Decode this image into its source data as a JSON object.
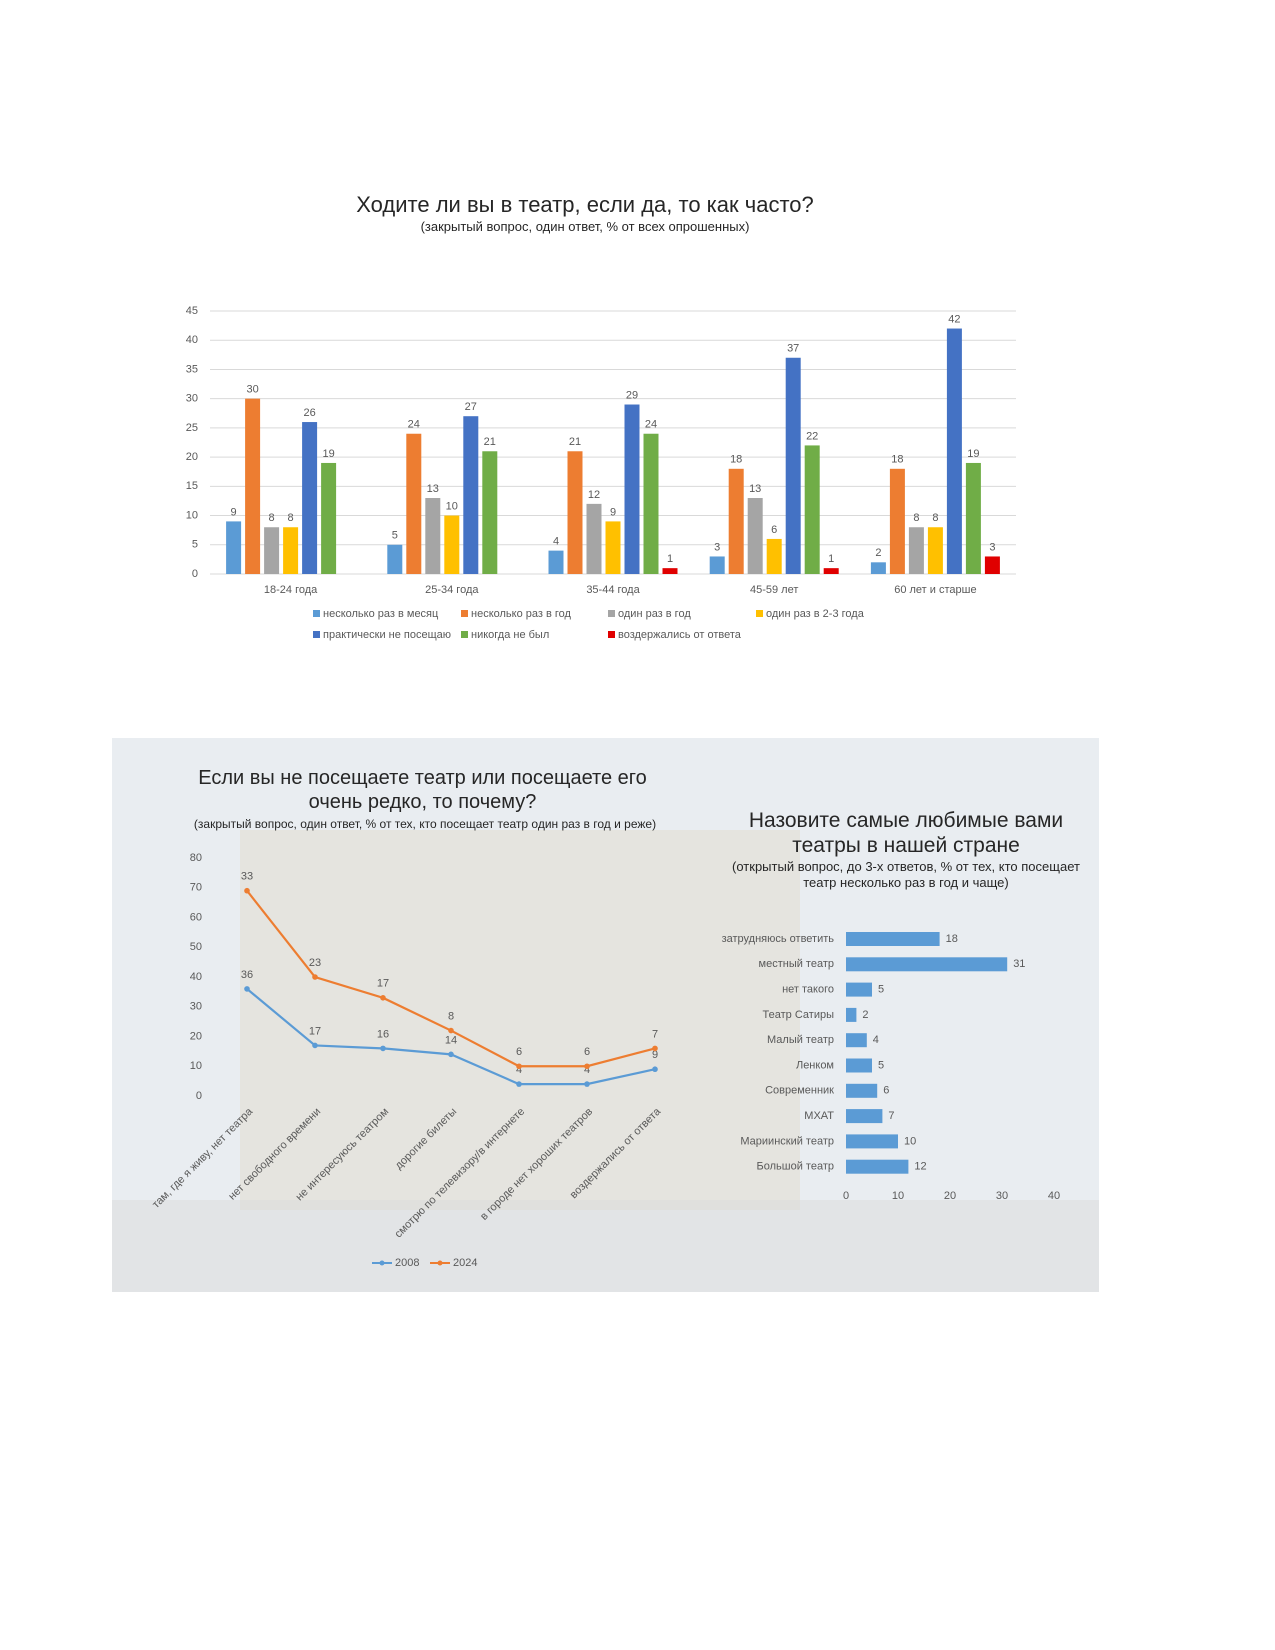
{
  "chart_data": [
    {
      "type": "bar",
      "title": "Ходите ли вы в театр, если да, то как часто?",
      "subtitle": "(закрытый вопрос, один ответ, % от всех опрошенных)",
      "categories": [
        "18-24 года",
        "25-34 года",
        "35-44 года",
        "45-59 лет",
        "60 лет и старше"
      ],
      "series": [
        {
          "name": "несколько раз в месяц",
          "color": "#5b9bd5",
          "values": [
            9,
            5,
            4,
            3,
            2
          ]
        },
        {
          "name": "несколько раз в год",
          "color": "#ed7d31",
          "values": [
            30,
            24,
            21,
            18,
            18
          ]
        },
        {
          "name": "один раз в год",
          "color": "#a5a5a5",
          "values": [
            8,
            13,
            12,
            13,
            8
          ]
        },
        {
          "name": "один раз в 2-3 года",
          "color": "#ffc000",
          "values": [
            8,
            10,
            9,
            6,
            8
          ]
        },
        {
          "name": "практически не посещаю",
          "color": "#4472c4",
          "values": [
            26,
            27,
            29,
            37,
            42
          ]
        },
        {
          "name": "никогда не был",
          "color": "#70ad47",
          "values": [
            19,
            21,
            24,
            22,
            19
          ]
        },
        {
          "name": "воздержались от ответа",
          "color": "#e00000",
          "values": [
            null,
            null,
            1,
            1,
            3
          ]
        }
      ],
      "ylim": [
        0,
        45
      ],
      "yticks": [
        0,
        5,
        10,
        15,
        20,
        25,
        30,
        35,
        40,
        45
      ],
      "grid": true,
      "legend": "bottom"
    },
    {
      "type": "line",
      "title": "Если вы не посещаете театр или посещаете его очень редко, то почему?",
      "subtitle": "(закрытый вопрос, один ответ, % от тех, кто посещает театр один раз в год и реже)",
      "categories": [
        "там, где я живу, нет театра",
        "нет свободного времени",
        "не интересуюсь театром",
        "дорогие билеты",
        "смотрю по телевизору/в интернете",
        "в городе нет хороших театров",
        "воздержались от ответа"
      ],
      "series": [
        {
          "name": "2008",
          "color": "#5b9bd5",
          "values": [
            36,
            17,
            16,
            14,
            4,
            4,
            9
          ]
        },
        {
          "name": "2024",
          "color": "#ed7d31",
          "values": [
            33,
            23,
            17,
            8,
            6,
            6,
            7
          ]
        }
      ],
      "stacked": true,
      "ylim": [
        0,
        80
      ],
      "yticks": [
        0,
        10,
        20,
        30,
        40,
        50,
        60,
        70,
        80
      ],
      "grid": false,
      "legend": "bottom"
    },
    {
      "type": "bar",
      "orientation": "horizontal",
      "title": "Назовите самые любимые вами театры в нашей стране",
      "subtitle": "(открытый вопрос, до 3-х ответов, % от тех, кто посещает театр несколько раз в год и чаще)",
      "categories": [
        "затрудняюсь ответить",
        "местный театр",
        "нет такого",
        "Театр Сатиры",
        "Малый театр",
        "Ленком",
        "Современник",
        "МХАТ",
        "Мариинский театр",
        "Большой театр"
      ],
      "values": [
        18,
        31,
        5,
        2,
        4,
        5,
        6,
        7,
        10,
        12
      ],
      "color": "#5b9bd5",
      "xlim": [
        0,
        40
      ],
      "xticks": [
        0,
        10,
        20,
        30,
        40
      ],
      "grid": false
    }
  ]
}
